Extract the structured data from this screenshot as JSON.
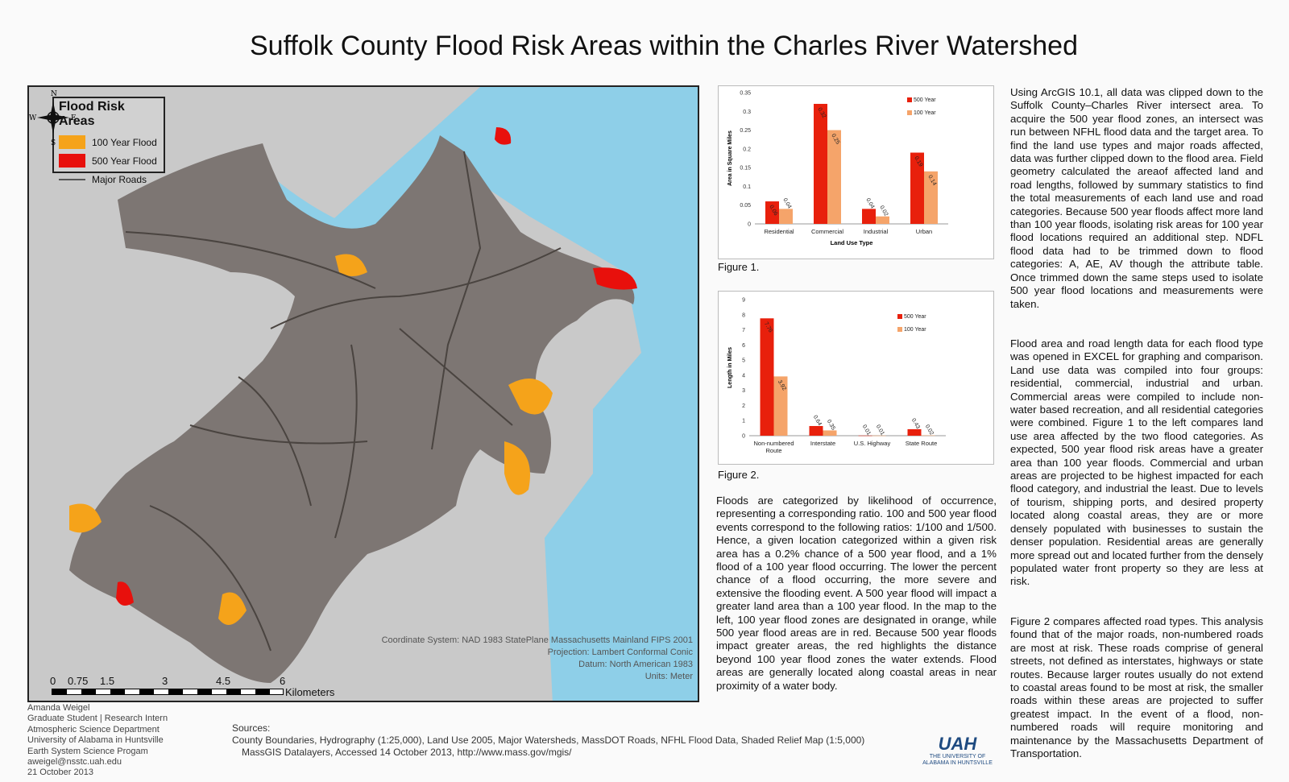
{
  "title": "Suffolk County Flood Risk Areas within the Charles River Watershed",
  "legend": {
    "title": "Flood Risk Areas",
    "items": [
      {
        "label": "100 Year Flood",
        "color": "#f5a31a"
      },
      {
        "label": "500 Year Flood",
        "color": "#e8100c"
      },
      {
        "label": "Major Roads",
        "color": "#555555"
      }
    ]
  },
  "compass": {
    "n": "N",
    "s": "S",
    "e": "E",
    "w": "W"
  },
  "scale": {
    "ticks": [
      "0",
      "0.75",
      "1.5",
      "3",
      "4.5",
      "6"
    ],
    "unit": "Kilometers"
  },
  "map_meta": [
    "Coordinate System: NAD 1983 StatePlane Massachusetts Mainland FIPS 2001",
    "Projection: Lambert Conformal Conic",
    "Datum: North American 1983",
    "Units: Meter"
  ],
  "chart_data": [
    {
      "type": "bar",
      "caption": "Figure 1.",
      "categories": [
        "Residential",
        "Commercial",
        "Industrial",
        "Urban"
      ],
      "series": [
        {
          "name": "500 Year",
          "values": [
            0.06,
            0.32,
            0.04,
            0.19
          ],
          "labels": [
            "0.06",
            "0.32",
            "0.04",
            "0.19"
          ],
          "color": "#e8200c"
        },
        {
          "name": "100 Year",
          "values": [
            0.04,
            0.25,
            0.02,
            0.14
          ],
          "labels": [
            "0.04",
            "0.25",
            "0.02",
            "0.14"
          ],
          "color": "#f5a46a"
        }
      ],
      "xlabel": "Land Use Type",
      "ylabel": "Area in Square Miles",
      "ylim": [
        0,
        0.35
      ],
      "yticks": [
        "0",
        "0.05",
        "0.1",
        "0.15",
        "0.2",
        "0.25",
        "0.3",
        "0.35"
      ],
      "legend": "top-right"
    },
    {
      "type": "bar",
      "caption": "Figure 2.",
      "categories": [
        "Non-numbered Route",
        "Interstate",
        "U.S. Highway",
        "State Route"
      ],
      "series": [
        {
          "name": "500 Year",
          "values": [
            7.76,
            0.64,
            0.01,
            0.43
          ],
          "labels": [
            "7.76",
            "0.64",
            "0.01",
            "0.43"
          ],
          "color": "#e8200c"
        },
        {
          "name": "100 Year",
          "values": [
            3.92,
            0.35,
            0.01,
            0.02
          ],
          "labels": [
            "3.92",
            "0.35",
            "0.01",
            "0.02"
          ],
          "color": "#f5a46a"
        }
      ],
      "xlabel": "",
      "ylabel": "Length in Miles",
      "ylim": [
        0,
        9
      ],
      "yticks": [
        "0",
        "1",
        "2",
        "3",
        "4",
        "5",
        "6",
        "7",
        "8",
        "9"
      ],
      "legend": "top-right"
    }
  ],
  "text": {
    "floods": "Floods are categorized by likelihood of occurrence, representing a corresponding ratio. 100 and 500 year flood events correspond to the following ratios: 1/100 and 1/500. Hence, a given location categorized within a given risk area has a 0.2% chance of a 500 year flood, and a 1% flood of a 100 year flood occurring. The lower the percent chance of a flood occurring, the more severe and extensive the flooding event. A 500 year flood will impact a greater land area than a 100 year flood. In the map to the left, 100 year flood zones are designated in orange, while 500 year flood areas are in red. Because 500 year floods impact greater areas, the red highlights the distance beyond 100 year flood zones the water extends. Flood areas are generally located along coastal areas in near proximity of a water body.",
    "methods": "Using ArcGIS 10.1, all data was clipped down to the Suffolk County–Charles River intersect area. To acquire the 500 year flood zones, an intersect was run between NFHL flood data and the target area. To find the land use types and major roads affected, data was further clipped down to the flood area. Field geometry calculated the areaof affected land and road lengths, followed by summary statistics to find the total measurements of each land use and road categories. Because 500 year floods affect more land than 100 year floods, isolating risk areas for 100 year flood locations required an additional step. NDFL flood data had to be trimmed down to flood categories: A, AE, AV though the attribute table. Once trimmed down the same steps used to isolate 500 year flood locations and measurements were taken.",
    "analysis1": "Flood area and road length data for each flood type was opened in EXCEL for graphing and comparison. Land use data was compiled into four groups: residential, commercial, industrial and urban. Commercial areas were compiled to include non-water based recreation, and all residential categories were combined. Figure 1 to the left compares land use area affected by the two flood categories. As expected, 500 year flood risk areas have a greater area than 100 year floods. Commercial and urban areas are projected to be highest impacted for each flood category, and industrial the least. Due to levels of tourism, shipping ports, and desired property located along coastal areas, they are or more densely populated with businesses to sustain the denser population. Residential areas are generally more spread out and located further from the densely populated water front property so they are less at risk.",
    "analysis2": "Figure 2 compares affected road types. This analysis found that of the major roads, non-numbered roads are most at risk. These roads comprise of general streets, not defined as interstates, highways or state routes. Because larger routes usually do not extend to coastal areas found to be most at risk, the smaller roads within these areas are projected to suffer greatest impact. In the event of a flood, non-numbered roads will require monitoring and maintenance by the Massachusetts Department of Transportation."
  },
  "author": [
    "Amanda Weigel",
    "Graduate Student | Research Intern",
    "Atmospheric Science Department",
    "University of Alabama in Huntsville",
    "Earth System Science Progam",
    "aweigel@nsstc.uah.edu",
    "21 October 2013"
  ],
  "sources": {
    "label": "Sources:",
    "line1": "County Boundaries, Hydrography (1:25,000), Land Use 2005, Major Watersheds, MassDOT Roads, NFHL Flood Data, Shaded Relief Map (1:5,000)",
    "line2": "MassGIS Datalayers, Accessed 14 October 2013, http://www.mass.gov/mgis/"
  },
  "logo": {
    "mark": "UAH",
    "line1": "THE UNIVERSITY OF",
    "line2": "ALABAMA IN HUNTSVILLE"
  }
}
